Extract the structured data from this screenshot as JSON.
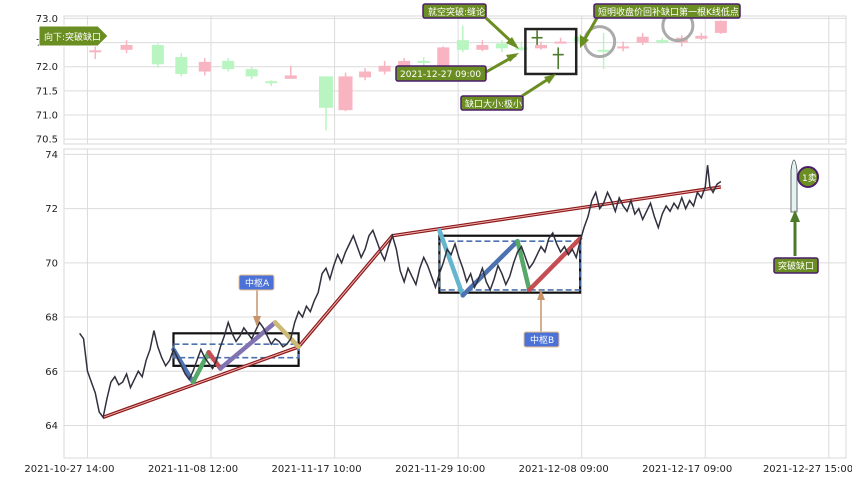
{
  "chart_data": [
    {
      "type": "candlestick",
      "panel": "top",
      "ylim": [
        70.4,
        73.05
      ],
      "y_ticks": [
        "70.5",
        "71.0",
        "71.5",
        "72.0",
        "72.5",
        "73.0"
      ],
      "grid": true,
      "candles": [
        {
          "t": 0.04,
          "o": 72.3,
          "c": 72.34,
          "h": 72.44,
          "l": 72.16,
          "dir": "down"
        },
        {
          "t": 0.08,
          "o": 72.35,
          "c": 72.45,
          "h": 72.55,
          "l": 72.28,
          "dir": "down"
        },
        {
          "t": 0.12,
          "o": 72.45,
          "c": 72.05,
          "h": 72.48,
          "l": 71.98,
          "dir": "up"
        },
        {
          "t": 0.15,
          "o": 72.2,
          "c": 71.85,
          "h": 72.28,
          "l": 71.8,
          "dir": "up"
        },
        {
          "t": 0.18,
          "o": 71.9,
          "c": 72.1,
          "h": 72.18,
          "l": 71.82,
          "dir": "down"
        },
        {
          "t": 0.21,
          "o": 72.12,
          "c": 71.95,
          "h": 72.18,
          "l": 71.9,
          "dir": "up"
        },
        {
          "t": 0.24,
          "o": 71.95,
          "c": 71.8,
          "h": 72.0,
          "l": 71.74,
          "dir": "up"
        },
        {
          "t": 0.265,
          "o": 71.7,
          "c": 71.68,
          "h": 71.72,
          "l": 71.6,
          "dir": "up"
        },
        {
          "t": 0.29,
          "o": 71.75,
          "c": 71.82,
          "h": 72.02,
          "l": 71.75,
          "dir": "down"
        },
        {
          "t": 0.335,
          "o": 71.8,
          "c": 71.15,
          "h": 71.8,
          "l": 70.68,
          "dir": "up"
        },
        {
          "t": 0.36,
          "o": 71.1,
          "c": 71.8,
          "h": 71.88,
          "l": 71.08,
          "dir": "down"
        },
        {
          "t": 0.385,
          "o": 71.78,
          "c": 71.9,
          "h": 71.97,
          "l": 71.72,
          "dir": "down"
        },
        {
          "t": 0.41,
          "o": 71.9,
          "c": 72.02,
          "h": 72.12,
          "l": 71.84,
          "dir": "down"
        },
        {
          "t": 0.435,
          "o": 72.02,
          "c": 72.12,
          "h": 72.18,
          "l": 71.97,
          "dir": "down"
        },
        {
          "t": 0.46,
          "o": 72.08,
          "c": 72.12,
          "h": 72.2,
          "l": 72.0,
          "dir": "up"
        },
        {
          "t": 0.485,
          "o": 72.0,
          "c": 72.4,
          "h": 72.42,
          "l": 71.98,
          "dir": "down"
        },
        {
          "t": 0.51,
          "o": 72.35,
          "c": 72.55,
          "h": 72.85,
          "l": 72.3,
          "dir": "up"
        },
        {
          "t": 0.535,
          "o": 72.35,
          "c": 72.45,
          "h": 72.55,
          "l": 72.32,
          "dir": "down"
        },
        {
          "t": 0.56,
          "o": 72.48,
          "c": 72.38,
          "h": 72.55,
          "l": 72.3,
          "dir": "up"
        },
        {
          "t": 0.585,
          "o": 72.4,
          "c": 72.35,
          "h": 72.52,
          "l": 72.32,
          "dir": "up"
        },
        {
          "t": 0.61,
          "o": 72.38,
          "c": 72.45,
          "h": 72.52,
          "l": 72.35,
          "dir": "down"
        },
        {
          "t": 0.635,
          "o": 72.5,
          "c": 72.52,
          "h": 72.6,
          "l": 72.48,
          "dir": "down"
        },
        {
          "t": 0.66,
          "o": 72.62,
          "c": 72.52,
          "h": 72.68,
          "l": 72.45,
          "dir": "up"
        },
        {
          "t": 0.69,
          "o": 72.35,
          "c": 72.35,
          "h": 72.7,
          "l": 71.95,
          "dir": "up"
        },
        {
          "t": 0.715,
          "o": 72.38,
          "c": 72.42,
          "h": 72.52,
          "l": 72.32,
          "dir": "down"
        },
        {
          "t": 0.74,
          "o": 72.5,
          "c": 72.62,
          "h": 72.7,
          "l": 72.45,
          "dir": "down"
        },
        {
          "t": 0.765,
          "o": 72.55,
          "c": 72.5,
          "h": 72.6,
          "l": 72.48,
          "dir": "up"
        },
        {
          "t": 0.79,
          "o": 72.5,
          "c": 72.6,
          "h": 72.66,
          "l": 72.42,
          "dir": "down"
        },
        {
          "t": 0.815,
          "o": 72.58,
          "c": 72.64,
          "h": 72.7,
          "l": 72.55,
          "dir": "down"
        },
        {
          "t": 0.84,
          "o": 72.7,
          "c": 72.95,
          "h": 72.96,
          "l": 72.68,
          "dir": "down"
        }
      ],
      "gap_box": {
        "t0": 0.59,
        "t1": 0.655,
        "y0": 71.85,
        "y1": 72.78
      },
      "circles": [
        {
          "t": 0.685,
          "y": 72.52
        },
        {
          "t": 0.785,
          "y": 72.85
        }
      ],
      "annotations": [
        {
          "text": "向下:突破缺口",
          "kind": "arrow-tag"
        },
        {
          "text": "就空突破:缝论",
          "kind": "callout"
        },
        {
          "text": "2021-12-27 09:00",
          "kind": "callout"
        },
        {
          "text": "缺口大小:极小",
          "kind": "callout"
        },
        {
          "text": "短明收盘价回补缺口第一根K线低点",
          "kind": "callout"
        }
      ]
    },
    {
      "type": "line",
      "panel": "bottom",
      "ylim": [
        62.8,
        74.2
      ],
      "y_ticks": [
        "64",
        "66",
        "68",
        "70",
        "72",
        "74"
      ],
      "x_ticks": [
        "2021-10-27 14:00",
        "2021-11-08 12:00",
        "2021-11-17 10:00",
        "2021-11-29 10:00",
        "2021-12-08 09:00",
        "2021-12-17 09:00",
        "2021-12-27 15:00"
      ],
      "grid": true,
      "price": [
        [
          0.02,
          67.4
        ],
        [
          0.025,
          67.2
        ],
        [
          0.03,
          66.0
        ],
        [
          0.035,
          65.6
        ],
        [
          0.04,
          65.2
        ],
        [
          0.045,
          64.5
        ],
        [
          0.05,
          64.3
        ],
        [
          0.055,
          65.0
        ],
        [
          0.06,
          65.6
        ],
        [
          0.065,
          65.8
        ],
        [
          0.07,
          65.5
        ],
        [
          0.075,
          65.6
        ],
        [
          0.08,
          65.9
        ],
        [
          0.085,
          65.4
        ],
        [
          0.09,
          65.7
        ],
        [
          0.095,
          66.0
        ],
        [
          0.1,
          65.8
        ],
        [
          0.105,
          66.4
        ],
        [
          0.11,
          66.8
        ],
        [
          0.115,
          67.5
        ],
        [
          0.12,
          66.9
        ],
        [
          0.125,
          66.5
        ],
        [
          0.13,
          66.2
        ],
        [
          0.135,
          66.4
        ],
        [
          0.14,
          66.8
        ],
        [
          0.145,
          66.5
        ],
        [
          0.15,
          66.2
        ],
        [
          0.155,
          65.9
        ],
        [
          0.16,
          65.7
        ],
        [
          0.165,
          66.0
        ],
        [
          0.17,
          66.4
        ],
        [
          0.175,
          66.8
        ],
        [
          0.18,
          66.5
        ],
        [
          0.185,
          66.3
        ],
        [
          0.19,
          66.1
        ],
        [
          0.195,
          66.4
        ],
        [
          0.2,
          66.9
        ],
        [
          0.205,
          67.3
        ],
        [
          0.21,
          67.8
        ],
        [
          0.215,
          67.4
        ],
        [
          0.22,
          67.1
        ],
        [
          0.225,
          67.3
        ],
        [
          0.23,
          67.6
        ],
        [
          0.235,
          67.4
        ],
        [
          0.24,
          67.2
        ],
        [
          0.245,
          67.5
        ],
        [
          0.25,
          67.8
        ],
        [
          0.255,
          67.6
        ],
        [
          0.26,
          67.3
        ],
        [
          0.265,
          67.0
        ],
        [
          0.27,
          67.2
        ],
        [
          0.275,
          67.1
        ],
        [
          0.28,
          66.9
        ],
        [
          0.285,
          67.0
        ],
        [
          0.29,
          67.2
        ],
        [
          0.295,
          67.8
        ],
        [
          0.3,
          68.2
        ],
        [
          0.305,
          68.0
        ],
        [
          0.31,
          68.4
        ],
        [
          0.315,
          68.2
        ],
        [
          0.32,
          68.6
        ],
        [
          0.325,
          68.9
        ],
        [
          0.33,
          69.6
        ],
        [
          0.335,
          69.8
        ],
        [
          0.34,
          69.4
        ],
        [
          0.345,
          69.9
        ],
        [
          0.35,
          70.3
        ],
        [
          0.355,
          70.0
        ],
        [
          0.36,
          70.4
        ],
        [
          0.365,
          70.7
        ],
        [
          0.37,
          71.0
        ],
        [
          0.375,
          70.6
        ],
        [
          0.38,
          70.2
        ],
        [
          0.385,
          70.5
        ],
        [
          0.39,
          71.0
        ],
        [
          0.395,
          71.2
        ],
        [
          0.4,
          70.8
        ],
        [
          0.405,
          70.4
        ],
        [
          0.41,
          70.1
        ],
        [
          0.415,
          70.6
        ],
        [
          0.42,
          71.0
        ],
        [
          0.425,
          70.5
        ],
        [
          0.43,
          69.7
        ],
        [
          0.435,
          69.3
        ],
        [
          0.44,
          69.8
        ],
        [
          0.445,
          69.5
        ],
        [
          0.45,
          69.2
        ],
        [
          0.455,
          69.8
        ],
        [
          0.46,
          70.2
        ],
        [
          0.465,
          69.9
        ],
        [
          0.47,
          69.5
        ],
        [
          0.475,
          69.1
        ],
        [
          0.48,
          69.6
        ],
        [
          0.485,
          70.0
        ],
        [
          0.49,
          70.5
        ],
        [
          0.495,
          70.3
        ],
        [
          0.5,
          70.7
        ],
        [
          0.505,
          70.2
        ],
        [
          0.51,
          69.8
        ],
        [
          0.515,
          69.3
        ],
        [
          0.52,
          69.6
        ],
        [
          0.525,
          69.1
        ],
        [
          0.53,
          69.4
        ],
        [
          0.535,
          69.8
        ],
        [
          0.54,
          69.3
        ],
        [
          0.545,
          69.0
        ],
        [
          0.55,
          69.4
        ],
        [
          0.555,
          69.9
        ],
        [
          0.56,
          69.6
        ],
        [
          0.565,
          69.2
        ],
        [
          0.57,
          69.5
        ],
        [
          0.575,
          70.0
        ],
        [
          0.58,
          70.4
        ],
        [
          0.585,
          70.6
        ],
        [
          0.59,
          70.2
        ],
        [
          0.595,
          69.8
        ],
        [
          0.6,
          70.0
        ],
        [
          0.605,
          70.3
        ],
        [
          0.61,
          70.6
        ],
        [
          0.615,
          70.4
        ],
        [
          0.62,
          70.9
        ],
        [
          0.625,
          71.1
        ],
        [
          0.63,
          70.7
        ],
        [
          0.635,
          70.4
        ],
        [
          0.64,
          70.6
        ],
        [
          0.645,
          70.3
        ],
        [
          0.65,
          70.5
        ],
        [
          0.655,
          70.2
        ],
        [
          0.66,
          70.8
        ],
        [
          0.665,
          71.3
        ],
        [
          0.67,
          71.7
        ],
        [
          0.675,
          72.3
        ],
        [
          0.68,
          72.6
        ],
        [
          0.685,
          72.0
        ],
        [
          0.69,
          72.2
        ],
        [
          0.695,
          72.6
        ],
        [
          0.7,
          72.3
        ],
        [
          0.705,
          71.9
        ],
        [
          0.71,
          72.4
        ],
        [
          0.715,
          72.1
        ],
        [
          0.72,
          71.9
        ],
        [
          0.725,
          72.3
        ],
        [
          0.73,
          71.8
        ],
        [
          0.735,
          72.0
        ],
        [
          0.74,
          71.6
        ],
        [
          0.745,
          71.9
        ],
        [
          0.75,
          72.2
        ],
        [
          0.755,
          71.7
        ],
        [
          0.76,
          71.3
        ],
        [
          0.765,
          71.8
        ],
        [
          0.77,
          72.1
        ],
        [
          0.775,
          71.9
        ],
        [
          0.78,
          72.2
        ],
        [
          0.785,
          72.0
        ],
        [
          0.79,
          72.4
        ],
        [
          0.795,
          72.0
        ],
        [
          0.8,
          72.3
        ],
        [
          0.805,
          72.1
        ],
        [
          0.81,
          72.6
        ],
        [
          0.815,
          72.4
        ],
        [
          0.82,
          72.8
        ],
        [
          0.823,
          73.6
        ],
        [
          0.826,
          72.8
        ],
        [
          0.83,
          72.6
        ],
        [
          0.835,
          72.9
        ],
        [
          0.84,
          73.0
        ]
      ],
      "trend": [
        [
          0.05,
          64.3
        ],
        [
          0.3,
          66.9
        ],
        [
          0.42,
          71.0
        ],
        [
          0.84,
          72.8
        ]
      ],
      "zhongshu": [
        {
          "label": "中枢A",
          "t0": 0.14,
          "t1": 0.3,
          "outer": [
            66.2,
            67.4
          ],
          "inner": [
            66.5,
            67.0
          ]
        },
        {
          "label": "中枢B",
          "t0": 0.48,
          "t1": 0.66,
          "outer": [
            68.9,
            71.0
          ],
          "inner": [
            69.0,
            70.8
          ]
        }
      ],
      "strokes": [
        {
          "pts": [
            [
              0.14,
              66.8
            ],
            [
              0.165,
              65.6
            ]
          ],
          "color": "#4c72b0"
        },
        {
          "pts": [
            [
              0.165,
              65.6
            ],
            [
              0.185,
              66.7
            ]
          ],
          "color": "#55a868"
        },
        {
          "pts": [
            [
              0.185,
              66.7
            ],
            [
              0.2,
              66.1
            ]
          ],
          "color": "#c44e52"
        },
        {
          "pts": [
            [
              0.2,
              66.1
            ],
            [
              0.27,
              67.8
            ]
          ],
          "color": "#8172b2"
        },
        {
          "pts": [
            [
              0.27,
              67.8
            ],
            [
              0.3,
              66.9
            ]
          ],
          "color": "#ccb974"
        },
        {
          "pts": [
            [
              0.48,
              71.2
            ],
            [
              0.51,
              68.8
            ]
          ],
          "color": "#64b5cd"
        },
        {
          "pts": [
            [
              0.51,
              68.8
            ],
            [
              0.58,
              70.8
            ]
          ],
          "color": "#4c72b0"
        },
        {
          "pts": [
            [
              0.58,
              70.8
            ],
            [
              0.595,
              69.0
            ]
          ],
          "color": "#55a868"
        },
        {
          "pts": [
            [
              0.595,
              69.0
            ],
            [
              0.66,
              70.9
            ]
          ],
          "color": "#c44e52"
        }
      ],
      "annotations": [
        {
          "text": "中枢A",
          "kind": "box-label"
        },
        {
          "text": "中枢B",
          "kind": "box-label"
        },
        {
          "text": "突破缺口",
          "kind": "callout"
        },
        {
          "text": "1卖",
          "kind": "signal"
        }
      ]
    }
  ]
}
